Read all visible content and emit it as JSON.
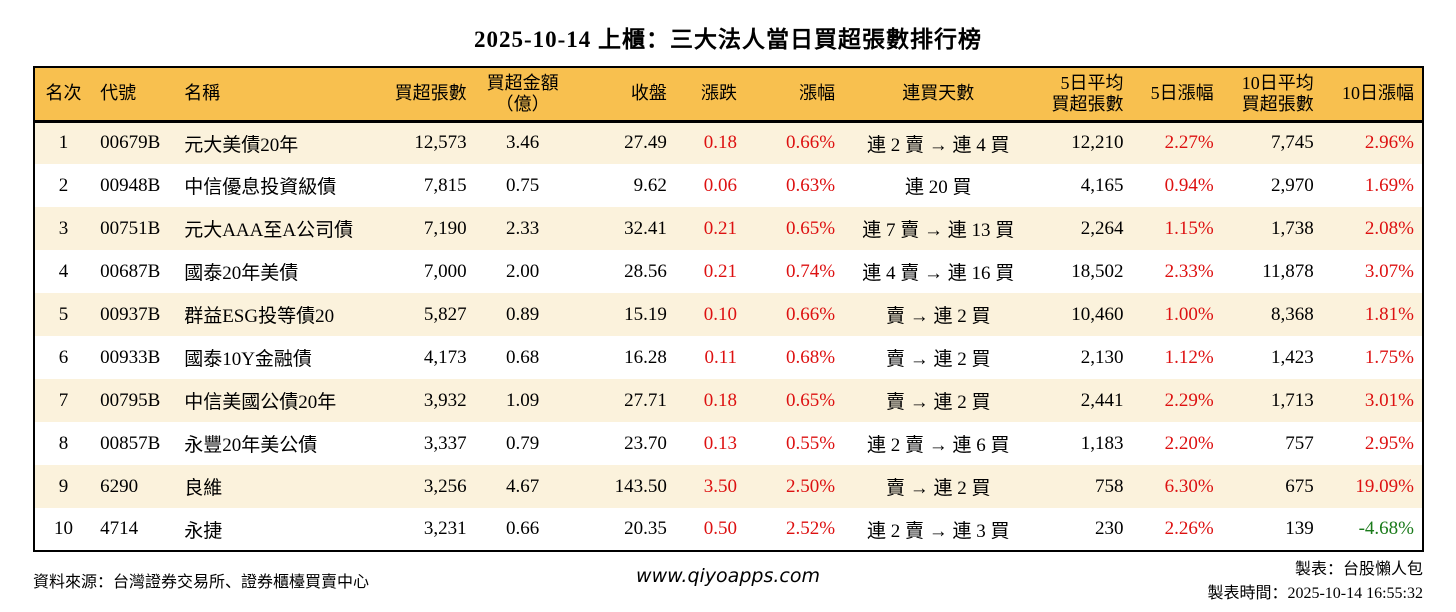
{
  "title": "2025-10-14 上櫃：三大法人當日買超張數排行榜",
  "colors": {
    "header_bg": "#F8C04F",
    "row_alt_bg": "#FBF2DC",
    "row_bg": "#FFFFFF",
    "up_text": "#DD1111",
    "down_text": "#1A7A1A",
    "border": "#000000"
  },
  "table": {
    "columns": [
      {
        "key": "rank",
        "label": "名次",
        "align": "center"
      },
      {
        "key": "code",
        "label": "代號",
        "align": "left"
      },
      {
        "key": "name",
        "label": "名稱",
        "align": "left"
      },
      {
        "key": "buy_volume",
        "label": "買超張數",
        "align": "right"
      },
      {
        "key": "buy_amount",
        "label": "買超金額\n（億）",
        "align": "center"
      },
      {
        "key": "close",
        "label": "收盤",
        "align": "right"
      },
      {
        "key": "change",
        "label": "漲跌",
        "align": "right",
        "colored": true
      },
      {
        "key": "change_pct",
        "label": "漲幅",
        "align": "right",
        "colored": true
      },
      {
        "key": "streak",
        "label": "連買天數",
        "align": "center"
      },
      {
        "key": "avg5",
        "label": "5日平均\n買超張數",
        "align": "right"
      },
      {
        "key": "pct5",
        "label": "5日漲幅",
        "align": "right",
        "colored": true
      },
      {
        "key": "avg10",
        "label": "10日平均\n買超張數",
        "align": "right"
      },
      {
        "key": "pct10",
        "label": "10日漲幅",
        "align": "right",
        "colored": true
      }
    ],
    "rows": [
      {
        "rank": "1",
        "code": "00679B",
        "name": "元大美債20年",
        "buy_volume": "12,573",
        "buy_amount": "3.46",
        "close": "27.49",
        "change": "0.18",
        "change_pct": "0.66%",
        "streak": "連 2 賣 → 連 4 買",
        "avg5": "12,210",
        "pct5": "2.27%",
        "avg10": "7,745",
        "pct10": "2.96%"
      },
      {
        "rank": "2",
        "code": "00948B",
        "name": "中信優息投資級債",
        "buy_volume": "7,815",
        "buy_amount": "0.75",
        "close": "9.62",
        "change": "0.06",
        "change_pct": "0.63%",
        "streak": "連 20 買",
        "avg5": "4,165",
        "pct5": "0.94%",
        "avg10": "2,970",
        "pct10": "1.69%"
      },
      {
        "rank": "3",
        "code": "00751B",
        "name": "元大AAA至A公司債",
        "buy_volume": "7,190",
        "buy_amount": "2.33",
        "close": "32.41",
        "change": "0.21",
        "change_pct": "0.65%",
        "streak": "連 7 賣 → 連 13 買",
        "avg5": "2,264",
        "pct5": "1.15%",
        "avg10": "1,738",
        "pct10": "2.08%"
      },
      {
        "rank": "4",
        "code": "00687B",
        "name": "國泰20年美債",
        "buy_volume": "7,000",
        "buy_amount": "2.00",
        "close": "28.56",
        "change": "0.21",
        "change_pct": "0.74%",
        "streak": "連 4 賣 → 連 16 買",
        "avg5": "18,502",
        "pct5": "2.33%",
        "avg10": "11,878",
        "pct10": "3.07%"
      },
      {
        "rank": "5",
        "code": "00937B",
        "name": "群益ESG投等債20",
        "buy_volume": "5,827",
        "buy_amount": "0.89",
        "close": "15.19",
        "change": "0.10",
        "change_pct": "0.66%",
        "streak": "賣 → 連 2 買",
        "avg5": "10,460",
        "pct5": "1.00%",
        "avg10": "8,368",
        "pct10": "1.81%"
      },
      {
        "rank": "6",
        "code": "00933B",
        "name": "國泰10Y金融債",
        "buy_volume": "4,173",
        "buy_amount": "0.68",
        "close": "16.28",
        "change": "0.11",
        "change_pct": "0.68%",
        "streak": "賣 → 連 2 買",
        "avg5": "2,130",
        "pct5": "1.12%",
        "avg10": "1,423",
        "pct10": "1.75%"
      },
      {
        "rank": "7",
        "code": "00795B",
        "name": "中信美國公債20年",
        "buy_volume": "3,932",
        "buy_amount": "1.09",
        "close": "27.71",
        "change": "0.18",
        "change_pct": "0.65%",
        "streak": "賣 → 連 2 買",
        "avg5": "2,441",
        "pct5": "2.29%",
        "avg10": "1,713",
        "pct10": "3.01%"
      },
      {
        "rank": "8",
        "code": "00857B",
        "name": "永豐20年美公債",
        "buy_volume": "3,337",
        "buy_amount": "0.79",
        "close": "23.70",
        "change": "0.13",
        "change_pct": "0.55%",
        "streak": "連 2 賣 → 連 6 買",
        "avg5": "1,183",
        "pct5": "2.20%",
        "avg10": "757",
        "pct10": "2.95%"
      },
      {
        "rank": "9",
        "code": "6290",
        "name": "良維",
        "buy_volume": "3,256",
        "buy_amount": "4.67",
        "close": "143.50",
        "change": "3.50",
        "change_pct": "2.50%",
        "streak": "賣 → 連 2 買",
        "avg5": "758",
        "pct5": "6.30%",
        "avg10": "675",
        "pct10": "19.09%"
      },
      {
        "rank": "10",
        "code": "4714",
        "name": "永捷",
        "buy_volume": "3,231",
        "buy_amount": "0.66",
        "close": "20.35",
        "change": "0.50",
        "change_pct": "2.52%",
        "streak": "連 2 賣 → 連 3 買",
        "avg5": "230",
        "pct5": "2.26%",
        "avg10": "139",
        "pct10": "-4.68%"
      }
    ]
  },
  "footer": {
    "source": "資料來源：台灣證券交易所、證券櫃檯買賣中心",
    "website": "www.qiyoapps.com",
    "maker": "製表：台股懶人包",
    "made_time": "製表時間：2025-10-14 16:55:32"
  }
}
